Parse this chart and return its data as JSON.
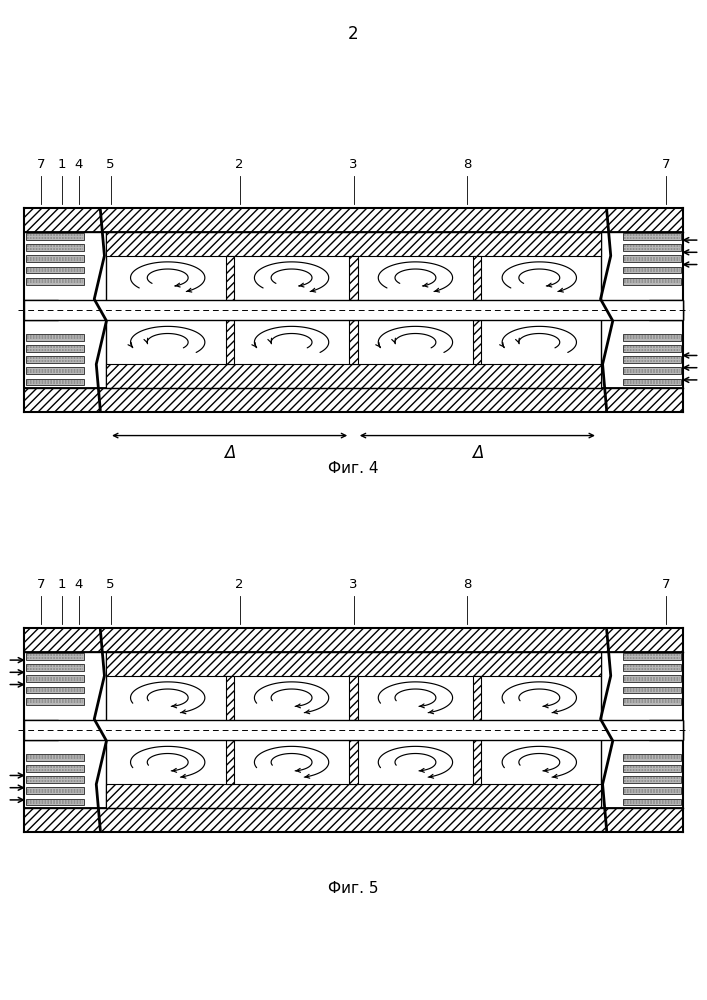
{
  "page_number": "2",
  "fig4_caption": "Фиг. 4",
  "fig5_caption": "Фиг. 5",
  "delta_label": "Δ",
  "bg_color": "#ffffff",
  "black": "#000000"
}
